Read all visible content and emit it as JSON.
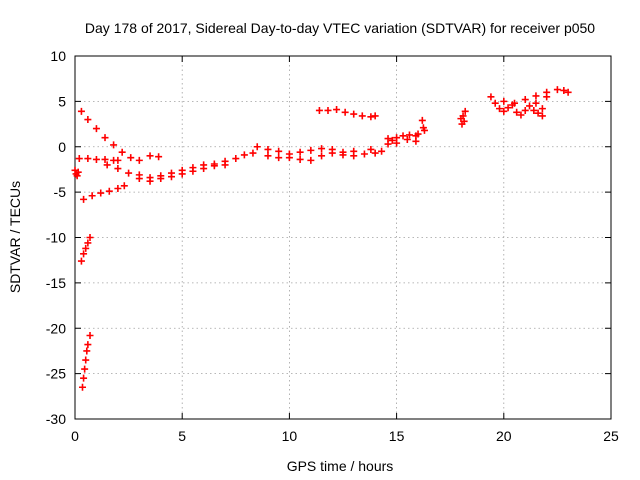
{
  "chart_data": {
    "type": "scatter",
    "title": "Day 178 of 2017, Sidereal Day-to-day VTEC variation (SDTVAR) for receiver p050",
    "xlabel": "GPS time / hours",
    "ylabel": "SDTVAR / TECUs",
    "xlim": [
      0,
      25
    ],
    "ylim": [
      -30,
      10
    ],
    "x_ticks": [
      0,
      5,
      10,
      15,
      20,
      25
    ],
    "y_ticks": [
      -30,
      -25,
      -20,
      -15,
      -10,
      -5,
      0,
      5,
      10
    ],
    "grid": true,
    "marker": "+",
    "color": "#ff0000",
    "series": [
      {
        "name": "SDTVAR",
        "points": [
          [
            0.0,
            -2.6
          ],
          [
            0.05,
            -3.0
          ],
          [
            0.1,
            -3.2
          ],
          [
            0.15,
            -2.8
          ],
          [
            0.3,
            3.9
          ],
          [
            0.6,
            3.0
          ],
          [
            1.0,
            2.0
          ],
          [
            1.4,
            1.0
          ],
          [
            1.8,
            0.2
          ],
          [
            2.2,
            -0.6
          ],
          [
            2.6,
            -1.2
          ],
          [
            3.0,
            -1.5
          ],
          [
            3.5,
            -1.0
          ],
          [
            3.9,
            -1.1
          ],
          [
            0.2,
            -1.3
          ],
          [
            0.6,
            -1.3
          ],
          [
            1.0,
            -1.4
          ],
          [
            1.4,
            -1.4
          ],
          [
            1.8,
            -1.5
          ],
          [
            2.0,
            -1.5
          ],
          [
            0.4,
            -5.8
          ],
          [
            0.8,
            -5.4
          ],
          [
            1.2,
            -5.1
          ],
          [
            1.6,
            -4.9
          ],
          [
            2.0,
            -4.6
          ],
          [
            2.3,
            -4.3
          ],
          [
            1.5,
            -2.0
          ],
          [
            2.0,
            -2.4
          ],
          [
            2.5,
            -2.9
          ],
          [
            3.0,
            -3.1
          ],
          [
            3.5,
            -3.4
          ],
          [
            4.0,
            -3.2
          ],
          [
            4.5,
            -2.9
          ],
          [
            5.0,
            -2.6
          ],
          [
            5.5,
            -2.3
          ],
          [
            6.0,
            -2.0
          ],
          [
            6.5,
            -1.9
          ],
          [
            7.0,
            -1.6
          ],
          [
            7.5,
            -1.3
          ],
          [
            7.9,
            -0.9
          ],
          [
            3.0,
            -3.5
          ],
          [
            3.5,
            -3.8
          ],
          [
            4.0,
            -3.5
          ],
          [
            4.5,
            -3.3
          ],
          [
            5.0,
            -3.0
          ],
          [
            5.5,
            -2.7
          ],
          [
            6.0,
            -2.4
          ],
          [
            6.5,
            -2.1
          ],
          [
            7.0,
            -2.0
          ],
          [
            8.3,
            -0.7
          ],
          [
            9.0,
            -1.0
          ],
          [
            9.5,
            -1.2
          ],
          [
            10.0,
            -1.2
          ],
          [
            10.5,
            -1.4
          ],
          [
            11.0,
            -1.5
          ],
          [
            11.5,
            -1.0
          ],
          [
            12.0,
            -0.7
          ],
          [
            12.5,
            -0.9
          ],
          [
            13.0,
            -1.0
          ],
          [
            13.5,
            -0.8
          ],
          [
            14.0,
            -0.7
          ],
          [
            14.3,
            -0.5
          ],
          [
            8.5,
            0.0
          ],
          [
            9.0,
            -0.3
          ],
          [
            9.5,
            -0.5
          ],
          [
            10.0,
            -0.8
          ],
          [
            10.5,
            -0.6
          ],
          [
            11.0,
            -0.4
          ],
          [
            11.5,
            -0.2
          ],
          [
            12.0,
            -0.3
          ],
          [
            12.5,
            -0.6
          ],
          [
            13.0,
            -0.5
          ],
          [
            13.8,
            -0.3
          ],
          [
            11.4,
            4.0
          ],
          [
            11.8,
            4.0
          ],
          [
            12.2,
            4.1
          ],
          [
            12.6,
            3.8
          ],
          [
            13.0,
            3.6
          ],
          [
            13.4,
            3.4
          ],
          [
            13.8,
            3.3
          ],
          [
            14.0,
            3.4
          ],
          [
            14.6,
            0.3
          ],
          [
            14.8,
            0.7
          ],
          [
            15.0,
            1.0
          ],
          [
            15.3,
            1.2
          ],
          [
            15.6,
            1.3
          ],
          [
            15.9,
            1.2
          ],
          [
            16.0,
            1.4
          ],
          [
            14.6,
            0.9
          ],
          [
            15.0,
            0.4
          ],
          [
            15.5,
            0.8
          ],
          [
            15.9,
            0.6
          ],
          [
            16.2,
            2.9
          ],
          [
            16.25,
            2.1
          ],
          [
            16.3,
            1.8
          ],
          [
            18.0,
            3.1
          ],
          [
            18.05,
            2.5
          ],
          [
            18.1,
            3.4
          ],
          [
            18.15,
            2.8
          ],
          [
            18.2,
            3.9
          ],
          [
            19.4,
            5.5
          ],
          [
            19.6,
            4.8
          ],
          [
            19.8,
            4.2
          ],
          [
            20.0,
            3.9
          ],
          [
            20.2,
            4.3
          ],
          [
            20.4,
            4.6
          ],
          [
            20.6,
            3.8
          ],
          [
            20.8,
            3.5
          ],
          [
            21.0,
            4.0
          ],
          [
            21.2,
            4.5
          ],
          [
            21.4,
            4.0
          ],
          [
            21.6,
            3.7
          ],
          [
            21.8,
            4.2
          ],
          [
            20.0,
            5.0
          ],
          [
            20.5,
            4.8
          ],
          [
            21.0,
            5.2
          ],
          [
            21.5,
            5.6
          ],
          [
            22.0,
            6.0
          ],
          [
            22.5,
            6.3
          ],
          [
            22.8,
            6.2
          ],
          [
            23.0,
            6.0
          ],
          [
            21.8,
            3.4
          ],
          [
            21.5,
            4.8
          ],
          [
            22.0,
            5.5
          ],
          [
            0.3,
            -12.6
          ],
          [
            0.4,
            -11.8
          ],
          [
            0.5,
            -11.2
          ],
          [
            0.6,
            -10.6
          ],
          [
            0.7,
            -10.0
          ],
          [
            0.35,
            -26.5
          ],
          [
            0.4,
            -25.5
          ],
          [
            0.45,
            -24.5
          ],
          [
            0.5,
            -23.5
          ],
          [
            0.55,
            -22.5
          ],
          [
            0.6,
            -21.8
          ],
          [
            0.7,
            -20.8
          ]
        ]
      }
    ]
  }
}
